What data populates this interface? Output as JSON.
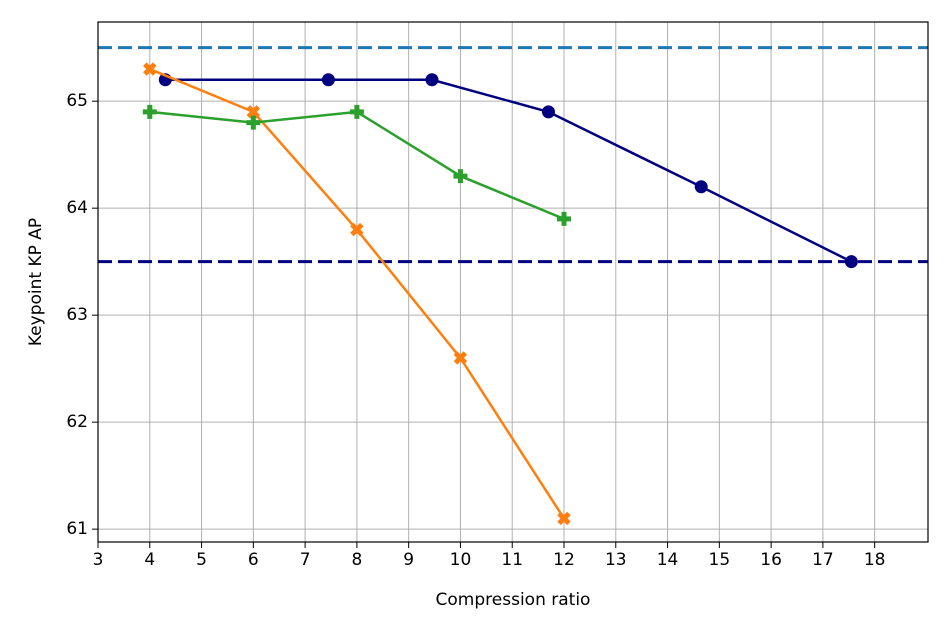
{
  "chart_data": {
    "type": "line",
    "xlabel": "Compression ratio",
    "ylabel": "Keypoint KP AP",
    "xlim": [
      3,
      19.03
    ],
    "ylim": [
      60.88,
      65.74
    ],
    "xticks": [
      3,
      4,
      5,
      6,
      7,
      8,
      9,
      10,
      11,
      12,
      13,
      14,
      15,
      16,
      17,
      18
    ],
    "yticks": [
      61,
      62,
      63,
      64,
      65
    ],
    "grid": true,
    "hlines": [
      {
        "value": 65.5,
        "color": "#1f77b4",
        "style": "dashed"
      },
      {
        "value": 63.5,
        "color": "#000080",
        "style": "dashed"
      }
    ],
    "series": [
      {
        "color": "#000080",
        "marker": "circle",
        "x": [
          4.3,
          7.45,
          9.45,
          11.7,
          14.65,
          17.55
        ],
        "values": [
          65.2,
          65.2,
          65.2,
          64.9,
          64.2,
          63.5
        ]
      },
      {
        "color": "#ff7f0e",
        "marker": "x",
        "x": [
          4,
          6,
          8,
          10,
          12
        ],
        "values": [
          65.3,
          64.9,
          63.8,
          62.6,
          61.1
        ]
      },
      {
        "color": "#2ca02c",
        "marker": "plus",
        "x": [
          4,
          6,
          8,
          10,
          12
        ],
        "values": [
          64.9,
          64.8,
          64.9,
          64.3,
          63.9
        ]
      }
    ]
  }
}
